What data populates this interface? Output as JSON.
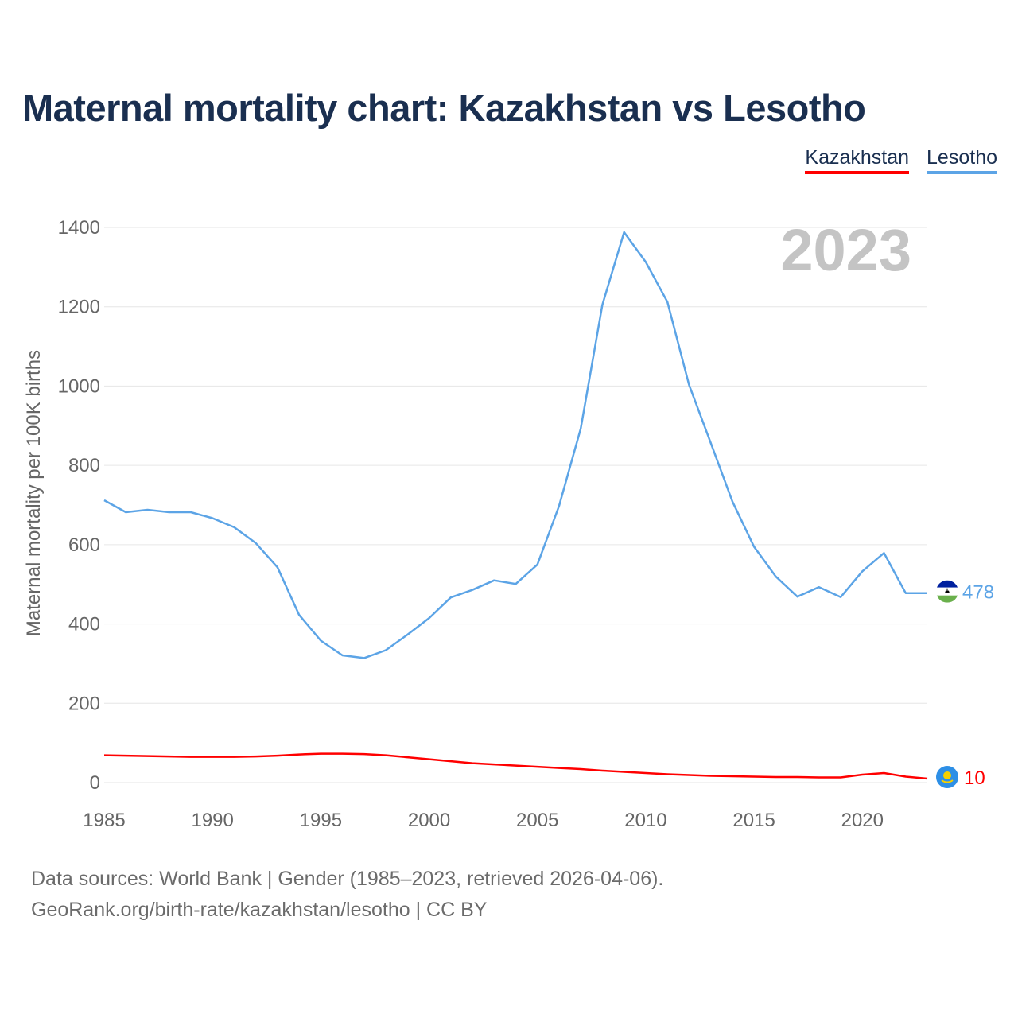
{
  "title": "Maternal mortality chart: Kazakhstan vs Lesotho",
  "legend": {
    "kazakhstan": "Kazakhstan",
    "lesotho": "Lesotho"
  },
  "footer": {
    "line1": "Data sources: World Bank | Gender (1985–2023, retrieved 2026-04-06).",
    "line2": "GeoRank.org/birth-rate/kazakhstan/lesotho | CC BY"
  },
  "chart_data": {
    "type": "line",
    "title": "Maternal mortality chart: Kazakhstan vs Lesotho",
    "ylabel": "Maternal mortality per 100K births",
    "xlabel": "",
    "year_watermark": "2023",
    "ylim": [
      0,
      1400
    ],
    "xlim": [
      1985,
      2023
    ],
    "yticks": [
      0,
      200,
      400,
      600,
      800,
      1000,
      1200,
      1400
    ],
    "xticks": [
      1985,
      1990,
      1995,
      2000,
      2005,
      2010,
      2015,
      2020
    ],
    "grid": true,
    "legend_position": "top-right",
    "x": [
      1985,
      1986,
      1987,
      1988,
      1989,
      1990,
      1991,
      1992,
      1993,
      1994,
      1995,
      1996,
      1997,
      1998,
      1999,
      2000,
      2001,
      2002,
      2003,
      2004,
      2005,
      2006,
      2007,
      2008,
      2009,
      2010,
      2011,
      2012,
      2013,
      2014,
      2015,
      2016,
      2017,
      2018,
      2019,
      2020,
      2021,
      2022,
      2023
    ],
    "series": [
      {
        "name": "Kazakhstan",
        "color": "#ff0000",
        "end_label": "10",
        "values": [
          69,
          68,
          67,
          66,
          65,
          65,
          65,
          66,
          68,
          71,
          73,
          73,
          72,
          69,
          64,
          59,
          54,
          49,
          46,
          43,
          40,
          37,
          34,
          30,
          27,
          24,
          21,
          19,
          17,
          16,
          15,
          14,
          14,
          13,
          13,
          20,
          24,
          15,
          10
        ]
      },
      {
        "name": "Lesotho",
        "color": "#5ca4e6",
        "end_label": "478",
        "values": [
          712,
          682,
          688,
          682,
          682,
          667,
          644,
          604,
          543,
          423,
          358,
          321,
          314,
          334,
          373,
          415,
          467,
          486,
          510,
          501,
          550,
          698,
          893,
          1205,
          1388,
          1313,
          1212,
          1003,
          857,
          709,
          595,
          520,
          469,
          493,
          468,
          533,
          579,
          478,
          478
        ]
      }
    ],
    "flags": {
      "kazakhstan_flag": "kazakhstan-flag",
      "lesotho_flag": "lesotho-flag"
    }
  }
}
